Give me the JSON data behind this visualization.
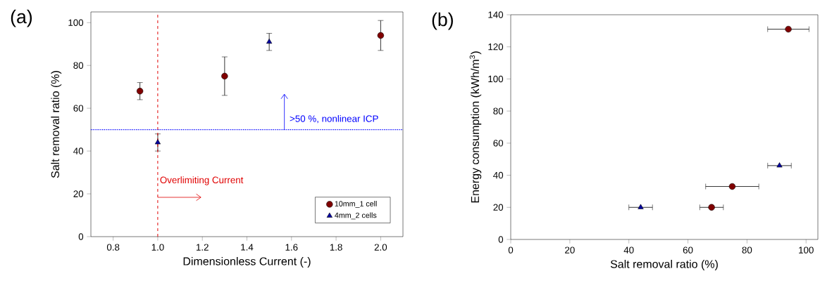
{
  "chart_data": [
    {
      "type": "scatter",
      "title": "(a)",
      "xlabel": "Dimensionless Current (-)",
      "ylabel": "Salt removal ratio (%)",
      "xlim": [
        0.7,
        2.1
      ],
      "ylim": [
        0,
        105
      ],
      "xticks": [
        {
          "value": 0.8,
          "label": "0.8"
        },
        {
          "value": 1.0,
          "label": "1.0"
        },
        {
          "value": 1.2,
          "label": "1.2"
        },
        {
          "value": 1.4,
          "label": "1.4"
        },
        {
          "value": 1.6,
          "label": "1.6"
        },
        {
          "value": 1.8,
          "label": "1.8"
        },
        {
          "value": 2.0,
          "label": "2.0"
        }
      ],
      "yticks": [
        0,
        20,
        40,
        60,
        80,
        100
      ],
      "legend": "bottom right",
      "series": [
        {
          "name": "10mm_1 cell",
          "color": "#800000",
          "marker": "circle",
          "x": [
            0.92,
            1.3,
            2.0
          ],
          "values": [
            68,
            75,
            94
          ],
          "errors": [
            4,
            9,
            7
          ]
        },
        {
          "name": "4mm_2 cells",
          "color": "#0000a0",
          "marker": "triangle",
          "x": [
            1.0,
            1.5
          ],
          "values": [
            44,
            91
          ],
          "errors": [
            4,
            4
          ]
        }
      ],
      "ref_lines": [
        {
          "axis": "x",
          "value": 1.0,
          "label": "Overlimiting Current",
          "color": "#e00000",
          "line_style": "dashed"
        },
        {
          "axis": "y",
          "value": 50,
          "label": ">50 %, nonlinear ICP",
          "color": "#0000ff",
          "line_style": "dotted"
        }
      ]
    },
    {
      "type": "scatter",
      "title": "(b)",
      "xlabel": "Salt removal ratio (%)",
      "ylabel": "Energy consumption (kWh/m$^{3}$)",
      "xlim": [
        0,
        104
      ],
      "ylim": [
        0,
        140
      ],
      "xticks": [
        0,
        20,
        40,
        60,
        80,
        100
      ],
      "yticks": [
        0,
        20,
        40,
        60,
        80,
        100,
        120,
        140
      ],
      "series": [
        {
          "color": "#800000",
          "marker": "circle",
          "x": [
            68,
            75,
            94
          ],
          "values": [
            20,
            33,
            131
          ],
          "xerrors": [
            4,
            9,
            7
          ]
        },
        {
          "color": "#0000a0",
          "marker": "triangle",
          "x": [
            44,
            91
          ],
          "values": [
            20,
            46
          ],
          "xerrors": [
            4,
            4
          ]
        }
      ]
    }
  ]
}
